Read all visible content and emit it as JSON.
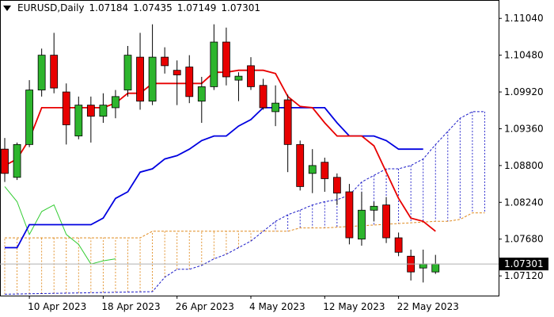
{
  "header": {
    "symbol": "EURUSD,Daily",
    "open": "1.07184",
    "high": "1.07435",
    "low": "1.07149",
    "close": "1.07301"
  },
  "colors": {
    "bull": "#2db52d",
    "bear": "#e80000",
    "tenkan": "#e80000",
    "kijun": "#0000e0",
    "chikou": "#33cc33",
    "span_a": "#1a1ac8",
    "span_b": "#e08a1e",
    "current_price_bg": "#000000",
    "current_price_line": "#b0b0b0"
  },
  "chart_data": {
    "type": "candlestick",
    "title": "EURUSD,Daily",
    "ylim": [
      1.0682,
      1.1132
    ],
    "y_ticks": [
      "1.11040",
      "1.10480",
      "1.09920",
      "1.09360",
      "1.08800",
      "1.08240",
      "1.07680",
      "1.07120"
    ],
    "current_price": "1.07301",
    "x_labels": [
      {
        "label": "10 Apr 2023",
        "index": 2
      },
      {
        "label": "18 Apr 2023",
        "index": 8
      },
      {
        "label": "26 Apr 2023",
        "index": 14
      },
      {
        "label": "4 May 2023",
        "index": 20
      },
      {
        "label": "12 May 2023",
        "index": 26
      },
      {
        "label": "22 May 2023",
        "index": 32
      }
    ],
    "candles": [
      {
        "o": 1.0905,
        "h": 1.0922,
        "l": 1.0855,
        "c": 1.0868
      },
      {
        "o": 1.0862,
        "h": 1.0915,
        "l": 1.0858,
        "c": 1.0912
      },
      {
        "o": 1.0912,
        "h": 1.101,
        "l": 1.0908,
        "c": 1.0995
      },
      {
        "o": 1.0995,
        "h": 1.1058,
        "l": 1.0985,
        "c": 1.1048
      },
      {
        "o": 1.1048,
        "h": 1.1082,
        "l": 1.099,
        "c": 1.0998
      },
      {
        "o": 1.0992,
        "h": 1.1005,
        "l": 1.0912,
        "c": 1.0942
      },
      {
        "o": 1.0925,
        "h": 1.0985,
        "l": 1.092,
        "c": 1.0972
      },
      {
        "o": 1.0972,
        "h": 1.0985,
        "l": 1.0915,
        "c": 1.0955
      },
      {
        "o": 1.0955,
        "h": 1.099,
        "l": 1.0945,
        "c": 1.0972
      },
      {
        "o": 1.0968,
        "h": 1.0995,
        "l": 1.0952,
        "c": 1.0985
      },
      {
        "o": 1.0995,
        "h": 1.1062,
        "l": 1.0985,
        "c": 1.1048
      },
      {
        "o": 1.1045,
        "h": 1.1082,
        "l": 1.0965,
        "c": 1.0978
      },
      {
        "o": 1.0978,
        "h": 1.1095,
        "l": 1.0972,
        "c": 1.1045
      },
      {
        "o": 1.1045,
        "h": 1.106,
        "l": 1.102,
        "c": 1.1032
      },
      {
        "o": 1.1025,
        "h": 1.104,
        "l": 1.0972,
        "c": 1.1018
      },
      {
        "o": 1.103,
        "h": 1.1048,
        "l": 1.0975,
        "c": 1.0985
      },
      {
        "o": 1.0978,
        "h": 1.1015,
        "l": 1.0945,
        "c": 1.1
      },
      {
        "o": 1.1,
        "h": 1.1095,
        "l": 1.0995,
        "c": 1.1068
      },
      {
        "o": 1.1068,
        "h": 1.109,
        "l": 1.1002,
        "c": 1.1015
      },
      {
        "o": 1.101,
        "h": 1.1022,
        "l": 1.0978,
        "c": 1.1016
      },
      {
        "o": 1.1032,
        "h": 1.1045,
        "l": 1.0995,
        "c": 1.1
      },
      {
        "o": 1.1002,
        "h": 1.1012,
        "l": 1.0965,
        "c": 1.0968
      },
      {
        "o": 1.0962,
        "h": 1.1002,
        "l": 1.094,
        "c": 1.0975
      },
      {
        "o": 1.098,
        "h": 1.0988,
        "l": 1.087,
        "c": 1.0912
      },
      {
        "o": 1.0912,
        "h": 1.0918,
        "l": 1.0842,
        "c": 1.0848
      },
      {
        "o": 1.0868,
        "h": 1.0905,
        "l": 1.0838,
        "c": 1.088
      },
      {
        "o": 1.0885,
        "h": 1.0892,
        "l": 1.084,
        "c": 1.086
      },
      {
        "o": 1.0862,
        "h": 1.0868,
        "l": 1.082,
        "c": 1.0838
      },
      {
        "o": 1.084,
        "h": 1.0852,
        "l": 1.076,
        "c": 1.077
      },
      {
        "o": 1.0768,
        "h": 1.084,
        "l": 1.0758,
        "c": 1.0812
      },
      {
        "o": 1.0812,
        "h": 1.0825,
        "l": 1.0795,
        "c": 1.0818
      },
      {
        "o": 1.082,
        "h": 1.0832,
        "l": 1.0762,
        "c": 1.077
      },
      {
        "o": 1.077,
        "h": 1.0778,
        "l": 1.0742,
        "c": 1.0748
      },
      {
        "o": 1.0742,
        "h": 1.0752,
        "l": 1.0705,
        "c": 1.0718
      },
      {
        "o": 1.0724,
        "h": 1.0752,
        "l": 1.0702,
        "c": 1.073
      },
      {
        "o": 1.0718,
        "h": 1.0744,
        "l": 1.0715,
        "c": 1.073
      }
    ],
    "tenkan_sen": [
      [
        0,
        1.088
      ],
      [
        1,
        1.089
      ],
      [
        2,
        1.092
      ],
      [
        3,
        1.0968
      ],
      [
        4,
        1.0968
      ],
      [
        5,
        1.0968
      ],
      [
        6,
        1.0968
      ],
      [
        7,
        1.0968
      ],
      [
        8,
        1.0968
      ],
      [
        9,
        1.0975
      ],
      [
        10,
        1.099
      ],
      [
        11,
        1.099
      ],
      [
        12,
        1.1005
      ],
      [
        13,
        1.1005
      ],
      [
        14,
        1.1005
      ],
      [
        15,
        1.1005
      ],
      [
        16,
        1.1005
      ],
      [
        17,
        1.1022
      ],
      [
        18,
        1.1022
      ],
      [
        19,
        1.1025
      ],
      [
        20,
        1.1025
      ],
      [
        21,
        1.1025
      ],
      [
        22,
        1.102
      ],
      [
        23,
        1.0985
      ],
      [
        24,
        1.097
      ],
      [
        25,
        1.0968
      ],
      [
        26,
        1.0945
      ],
      [
        27,
        1.0925
      ],
      [
        28,
        1.0925
      ],
      [
        29,
        1.0925
      ],
      [
        30,
        1.091
      ],
      [
        31,
        1.087
      ],
      [
        32,
        1.083
      ],
      [
        33,
        1.08
      ],
      [
        34,
        1.0795
      ],
      [
        35,
        1.078
      ]
    ],
    "kijun_sen": [
      [
        0,
        1.0755
      ],
      [
        1,
        1.0755
      ],
      [
        2,
        1.079
      ],
      [
        3,
        1.079
      ],
      [
        4,
        1.079
      ],
      [
        5,
        1.079
      ],
      [
        6,
        1.079
      ],
      [
        7,
        1.079
      ],
      [
        8,
        1.08
      ],
      [
        9,
        1.083
      ],
      [
        10,
        1.084
      ],
      [
        11,
        1.087
      ],
      [
        12,
        1.0875
      ],
      [
        13,
        1.089
      ],
      [
        14,
        1.0895
      ],
      [
        15,
        1.0905
      ],
      [
        16,
        1.0918
      ],
      [
        17,
        1.0925
      ],
      [
        18,
        1.0925
      ],
      [
        19,
        1.094
      ],
      [
        20,
        1.095
      ],
      [
        21,
        1.0968
      ],
      [
        22,
        1.0968
      ],
      [
        23,
        1.0968
      ],
      [
        24,
        1.0968
      ],
      [
        25,
        1.0968
      ],
      [
        26,
        1.0968
      ],
      [
        27,
        1.0945
      ],
      [
        28,
        1.0925
      ],
      [
        29,
        1.0925
      ],
      [
        30,
        1.0925
      ],
      [
        31,
        1.0918
      ],
      [
        32,
        1.0905
      ],
      [
        33,
        1.0905
      ],
      [
        34,
        1.0905
      ]
    ],
    "chikou_span": [
      [
        0,
        1.0848
      ],
      [
        1,
        1.0825
      ],
      [
        2,
        1.0775
      ],
      [
        3,
        1.081
      ],
      [
        4,
        1.082
      ],
      [
        5,
        1.0775
      ],
      [
        6,
        1.076
      ],
      [
        7,
        1.073
      ],
      [
        8,
        1.0735
      ],
      [
        9,
        1.0738
      ]
    ],
    "senkou_span_a": [
      [
        0,
        1.0684
      ],
      [
        12,
        1.0688
      ],
      [
        13,
        1.071
      ],
      [
        14,
        1.0722
      ],
      [
        15,
        1.0722
      ],
      [
        16,
        1.0728
      ],
      [
        17,
        1.0738
      ],
      [
        18,
        1.0745
      ],
      [
        19,
        1.0755
      ],
      [
        20,
        1.0765
      ],
      [
        21,
        1.078
      ],
      [
        22,
        1.0795
      ],
      [
        23,
        1.0805
      ],
      [
        24,
        1.0812
      ],
      [
        25,
        1.082
      ],
      [
        26,
        1.0825
      ],
      [
        27,
        1.0828
      ],
      [
        28,
        1.0835
      ],
      [
        29,
        1.0855
      ],
      [
        30,
        1.0865
      ],
      [
        31,
        1.0875
      ],
      [
        32,
        1.0875
      ],
      [
        33,
        1.088
      ],
      [
        34,
        1.089
      ],
      [
        35,
        1.0912
      ],
      [
        36,
        1.0932
      ],
      [
        37,
        1.0952
      ],
      [
        38,
        1.0962
      ],
      [
        39,
        1.0962
      ]
    ],
    "senkou_span_b": [
      [
        0,
        1.077
      ],
      [
        11,
        1.077
      ],
      [
        12,
        1.078
      ],
      [
        23,
        1.078
      ],
      [
        24,
        1.0785
      ],
      [
        25,
        1.0785
      ],
      [
        26,
        1.0785
      ],
      [
        35,
        1.0795
      ],
      [
        36,
        1.0795
      ],
      [
        37,
        1.0798
      ],
      [
        38,
        1.0808
      ],
      [
        39,
        1.0808
      ]
    ]
  }
}
